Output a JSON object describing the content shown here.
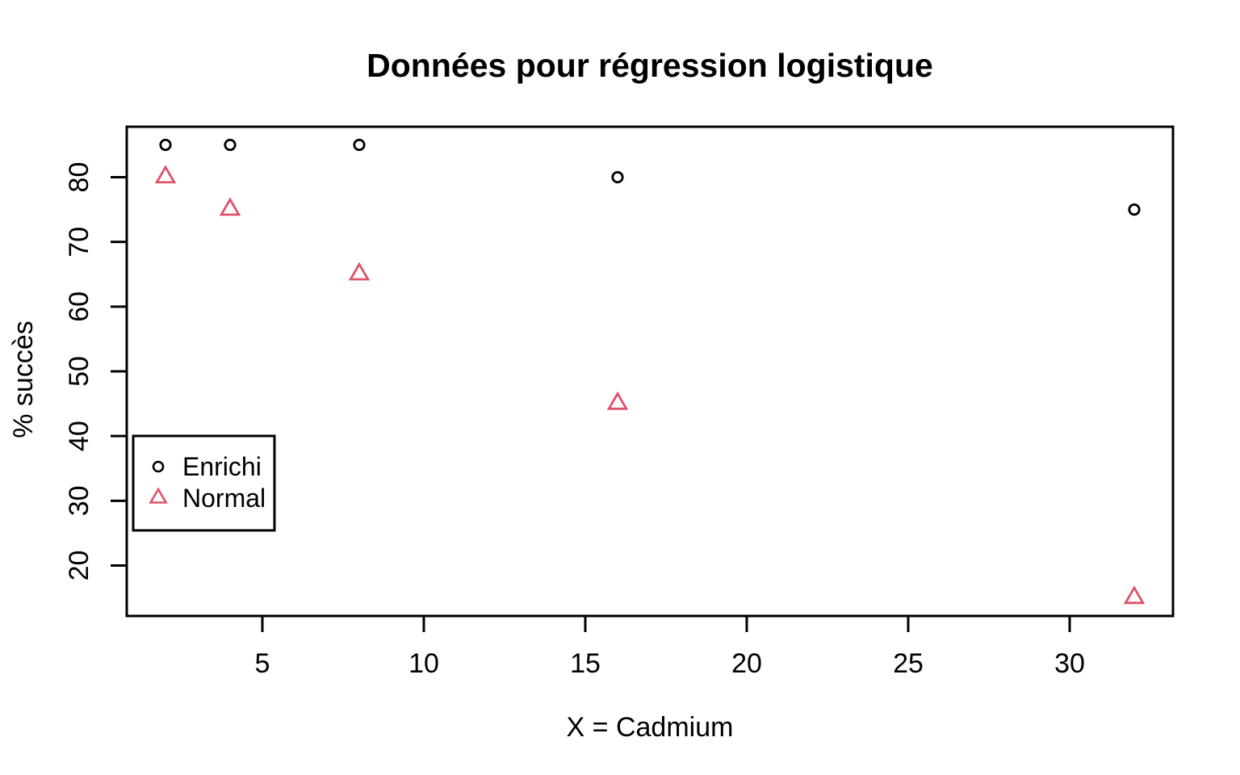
{
  "chart_data": {
    "type": "scatter",
    "title": "Données pour régression logistique",
    "xlabel": "X = Cadmium",
    "ylabel": "% succès",
    "xlim": [
      0.8,
      33.2
    ],
    "ylim": [
      12.2,
      87.8
    ],
    "x_ticks": [
      5,
      10,
      15,
      20,
      25,
      30
    ],
    "y_ticks": [
      20,
      30,
      40,
      50,
      60,
      70,
      80
    ],
    "grid": false,
    "background_color": "#ffffff",
    "axis_color": "#000000",
    "series": [
      {
        "name": "Enrichi",
        "marker": "circle",
        "color": "#000000",
        "x": [
          2,
          4,
          8,
          16,
          32
        ],
        "y": [
          85,
          85,
          85,
          80,
          75
        ]
      },
      {
        "name": "Normal",
        "marker": "triangle",
        "color": "#DF536B",
        "x": [
          2,
          4,
          8,
          16,
          32
        ],
        "y": [
          80,
          75,
          65,
          45,
          15
        ]
      }
    ],
    "legend": {
      "position": "middle-left",
      "items": [
        {
          "label": "Enrichi",
          "marker": "circle",
          "color": "#000000"
        },
        {
          "label": "Normal",
          "marker": "triangle",
          "color": "#DF536B"
        }
      ]
    }
  }
}
